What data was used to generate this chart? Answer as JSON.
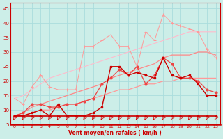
{
  "xlabel": "Vent moyen/en rafales ( km/h )",
  "xlim": [
    -0.5,
    23.5
  ],
  "ylim": [
    5,
    47
  ],
  "yticks": [
    5,
    10,
    15,
    20,
    25,
    30,
    35,
    40,
    45
  ],
  "xticks": [
    0,
    1,
    2,
    3,
    4,
    5,
    6,
    7,
    8,
    9,
    10,
    11,
    12,
    13,
    14,
    15,
    16,
    17,
    18,
    19,
    20,
    21,
    22,
    23
  ],
  "bg_color": "#cceee8",
  "grid_color": "#b0ddd8",
  "s1_dark_red_flat": [
    8,
    8,
    8,
    8,
    8,
    8,
    8,
    8,
    8,
    8,
    8,
    8,
    8,
    8,
    8,
    8,
    8,
    8,
    8,
    8,
    8,
    8,
    8,
    8
  ],
  "s2_dark_red_jagged": [
    8,
    8,
    9,
    10,
    8,
    12,
    8,
    8,
    8,
    9,
    11,
    25,
    25,
    22,
    23,
    22,
    21,
    28,
    22,
    21,
    22,
    19,
    15,
    15
  ],
  "s3_med_red_jagged": [
    8,
    9,
    12,
    12,
    11,
    11,
    12,
    12,
    13,
    14,
    19,
    21,
    24,
    22,
    25,
    19,
    22,
    28,
    26,
    21,
    21,
    20,
    17,
    16
  ],
  "s4_trend_low": [
    8,
    8,
    9,
    10,
    10,
    11,
    12,
    12,
    13,
    14,
    15,
    16,
    17,
    17,
    18,
    19,
    19,
    20,
    20,
    21,
    21,
    21,
    21,
    21
  ],
  "s5_trend_high": [
    8,
    9,
    11,
    12,
    13,
    14,
    15,
    16,
    17,
    18,
    19,
    21,
    22,
    23,
    24,
    25,
    26,
    28,
    29,
    29,
    29,
    30,
    30,
    29
  ],
  "s6_light_pink_jagged": [
    14,
    12,
    18,
    22,
    18,
    17,
    17,
    17,
    32,
    32,
    34,
    36,
    32,
    32,
    25,
    37,
    34,
    43,
    40,
    39,
    38,
    37,
    31,
    28
  ],
  "s7_light_pink_smooth": [
    14,
    15,
    17,
    19,
    21,
    22,
    23,
    24,
    25,
    26,
    27,
    28,
    29,
    30,
    31,
    32,
    33,
    34,
    35,
    36,
    37,
    37,
    37,
    37
  ],
  "wind_arrows": [
    0,
    1,
    2,
    3,
    4,
    5,
    6,
    7,
    8,
    9,
    10,
    11,
    12,
    13,
    14,
    15,
    16,
    17,
    18,
    19,
    20,
    21,
    22,
    23
  ]
}
